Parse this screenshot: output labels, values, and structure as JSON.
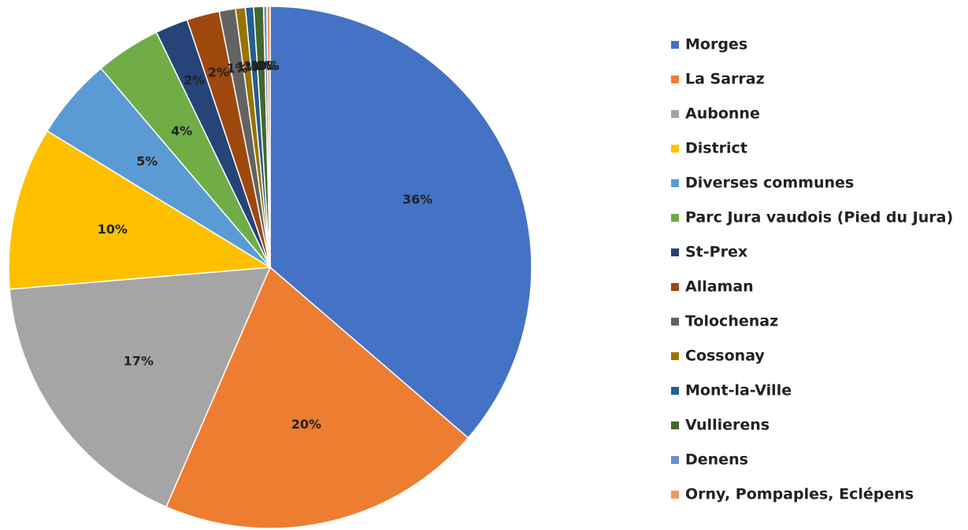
{
  "chart_data": {
    "type": "pie",
    "categories": [
      "Morges",
      "La Sarraz",
      "Aubonne",
      "District",
      "Diverses communes",
      "Parc Jura vaudois (Pied du Jura)",
      "St-Prex",
      "Allaman",
      "Tolochenaz",
      "Cossonay",
      "Mont-la-Ville",
      "Vullierens",
      "Denens",
      "Orny, Pompaples, Eclépens"
    ],
    "values": [
      36,
      20,
      17,
      10,
      5,
      4,
      2,
      2,
      1,
      0.6,
      0.5,
      0.6,
      0.2,
      0.2
    ],
    "value_labels": [
      "36%",
      "20%",
      "17%",
      "10%",
      "5%",
      "4%",
      "2%",
      "2%",
      "1%",
      "1%",
      "1%",
      "1%",
      "0%",
      "0%"
    ],
    "colors": [
      "#4472c4",
      "#ed7d31",
      "#a5a5a5",
      "#ffc000",
      "#5b9bd5",
      "#70ad47",
      "#264478",
      "#9e480e",
      "#636363",
      "#997300",
      "#255e91",
      "#43682b",
      "#698ed0",
      "#f1975a"
    ],
    "legend": "right"
  }
}
